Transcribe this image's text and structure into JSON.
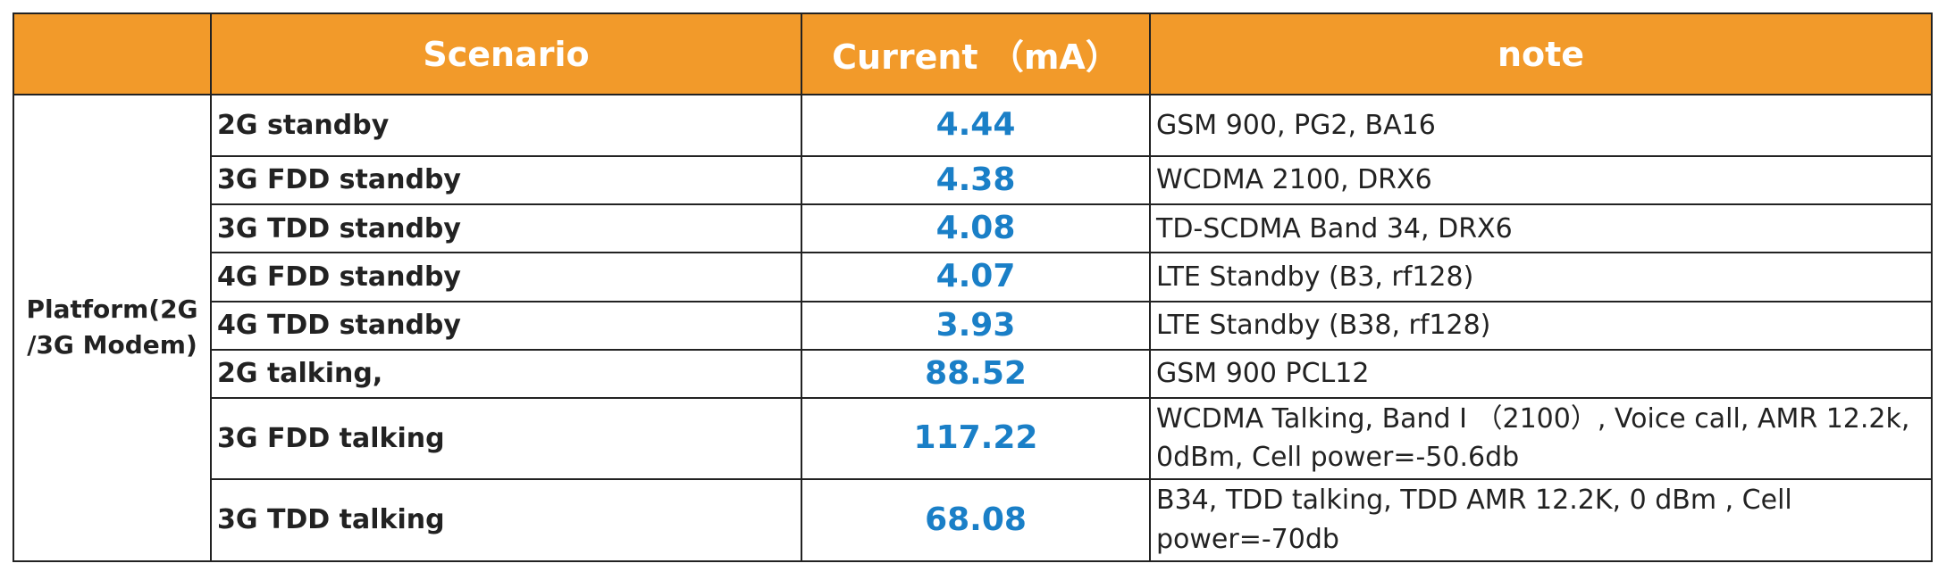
{
  "table": {
    "header": [
      "Scenario",
      "Current （mA）",
      "note"
    ],
    "group": "Platform(2G\n/3G Modem)",
    "rows": [
      [
        "2G standby",
        "4.44",
        "GSM 900, PG2, BA16"
      ],
      [
        "3G FDD standby",
        "4.38",
        "WCDMA 2100, DRX6"
      ],
      [
        "3G TDD standby",
        "4.08",
        "TD-SCDMA Band 34, DRX6"
      ],
      [
        "4G FDD standby",
        "4.07",
        "LTE Standby (B3, rf128)"
      ],
      [
        "4G TDD standby",
        "3.93",
        "LTE Standby (B38, rf128)"
      ],
      [
        "2G talking,",
        "88.52",
        "GSM 900 PCL12"
      ],
      [
        "3G FDD talking",
        "117.22",
        "WCDMA Talking, Band I （2100）, Voice call, AMR 12.2k, 0dBm, Cell power=-50.6db"
      ],
      [
        "3G TDD talking",
        "68.08",
        "B34, TDD talking, TDD AMR 12.2K, 0 dBm , Cell power=-70db"
      ]
    ]
  }
}
